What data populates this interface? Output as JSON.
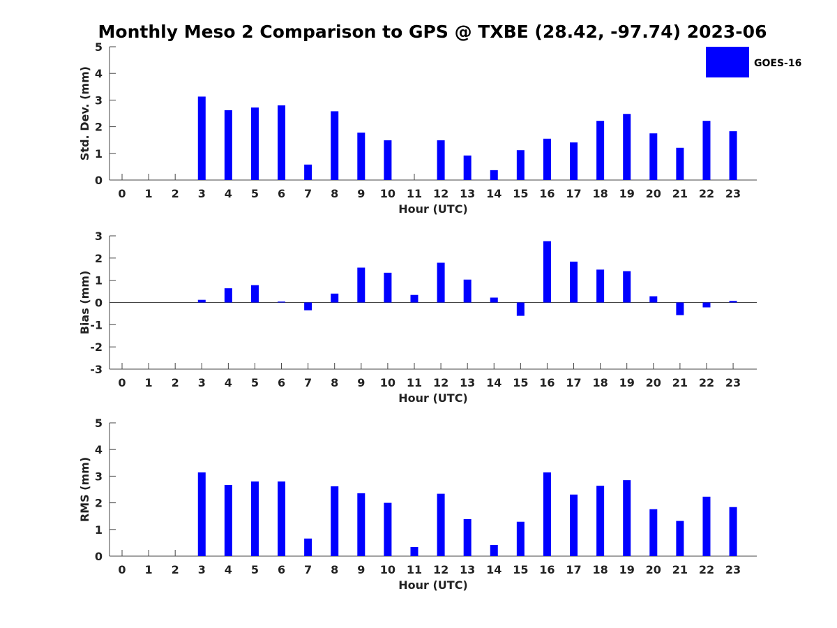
{
  "title": "Monthly Meso 2 Comparison to GPS @ TXBE (28.42, -97.74) 2023-06",
  "legend": {
    "label": "GOES-16",
    "color": "#0000ff"
  },
  "chart_data": [
    {
      "type": "bar",
      "ylabel": "Std. Dev. (mm)",
      "xlabel": "Hour (UTC)",
      "ylim": [
        0,
        5
      ],
      "yticks": [
        0,
        1,
        2,
        3,
        4,
        5
      ],
      "categories": [
        "0",
        "1",
        "2",
        "3",
        "4",
        "5",
        "6",
        "7",
        "8",
        "9",
        "10",
        "11",
        "12",
        "13",
        "14",
        "15",
        "16",
        "17",
        "18",
        "19",
        "20",
        "21",
        "22",
        "23"
      ],
      "series": [
        {
          "name": "GOES-16",
          "values": [
            null,
            null,
            null,
            3.13,
            2.62,
            2.72,
            2.8,
            0.58,
            2.58,
            1.78,
            1.49,
            null,
            1.49,
            0.92,
            0.37,
            1.12,
            1.55,
            1.41,
            2.22,
            2.48,
            1.75,
            1.21,
            2.22,
            1.83
          ]
        }
      ]
    },
    {
      "type": "bar",
      "ylabel": "Bias (mm)",
      "xlabel": "Hour (UTC)",
      "ylim": [
        -3,
        3
      ],
      "yticks": [
        -3,
        -2,
        -1,
        0,
        1,
        2,
        3
      ],
      "categories": [
        "0",
        "1",
        "2",
        "3",
        "4",
        "5",
        "6",
        "7",
        "8",
        "9",
        "10",
        "11",
        "12",
        "13",
        "14",
        "15",
        "16",
        "17",
        "18",
        "19",
        "20",
        "21",
        "22",
        "23"
      ],
      "series": [
        {
          "name": "GOES-16",
          "values": [
            null,
            null,
            null,
            0.12,
            0.64,
            0.78,
            0.04,
            -0.35,
            0.4,
            1.57,
            1.34,
            0.34,
            1.79,
            1.03,
            0.22,
            -0.6,
            2.76,
            1.84,
            1.48,
            1.41,
            0.28,
            -0.57,
            -0.22,
            0.07
          ]
        }
      ]
    },
    {
      "type": "bar",
      "ylabel": "RMS (mm)",
      "xlabel": "Hour (UTC)",
      "ylim": [
        0,
        5
      ],
      "yticks": [
        0,
        1,
        2,
        3,
        4,
        5
      ],
      "categories": [
        "0",
        "1",
        "2",
        "3",
        "4",
        "5",
        "6",
        "7",
        "8",
        "9",
        "10",
        "11",
        "12",
        "13",
        "14",
        "15",
        "16",
        "17",
        "18",
        "19",
        "20",
        "21",
        "22",
        "23"
      ],
      "series": [
        {
          "name": "GOES-16",
          "values": [
            null,
            null,
            null,
            3.14,
            2.67,
            2.8,
            2.8,
            0.66,
            2.62,
            2.36,
            2.0,
            0.34,
            2.34,
            1.39,
            0.42,
            1.29,
            3.14,
            2.31,
            2.64,
            2.85,
            1.76,
            1.32,
            2.23,
            1.84
          ]
        }
      ]
    }
  ]
}
